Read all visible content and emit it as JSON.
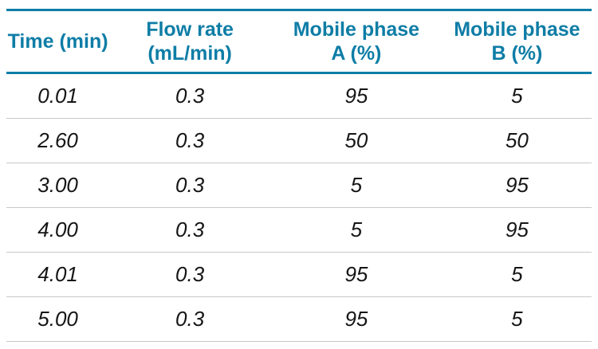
{
  "theme": {
    "accent": "#0e7da6",
    "row_line": "#c8c8c8",
    "ink": "#161616"
  },
  "table": {
    "headers": [
      {
        "line1": "Time (min)",
        "line2": ""
      },
      {
        "line1": "Flow rate",
        "line2": "(mL/min)"
      },
      {
        "line1": "Mobile phase",
        "line2": "A (%)"
      },
      {
        "line1": "Mobile phase",
        "line2": "B (%)"
      }
    ],
    "rows": [
      {
        "time": "0.01",
        "flow": "0.3",
        "a": "95",
        "b": "5"
      },
      {
        "time": "2.60",
        "flow": "0.3",
        "a": "50",
        "b": "50"
      },
      {
        "time": "3.00",
        "flow": "0.3",
        "a": "5",
        "b": "95"
      },
      {
        "time": "4.00",
        "flow": "0.3",
        "a": "5",
        "b": "95"
      },
      {
        "time": "4.01",
        "flow": "0.3",
        "a": "95",
        "b": "5"
      },
      {
        "time": "5.00",
        "flow": "0.3",
        "a": "95",
        "b": "5"
      }
    ]
  }
}
